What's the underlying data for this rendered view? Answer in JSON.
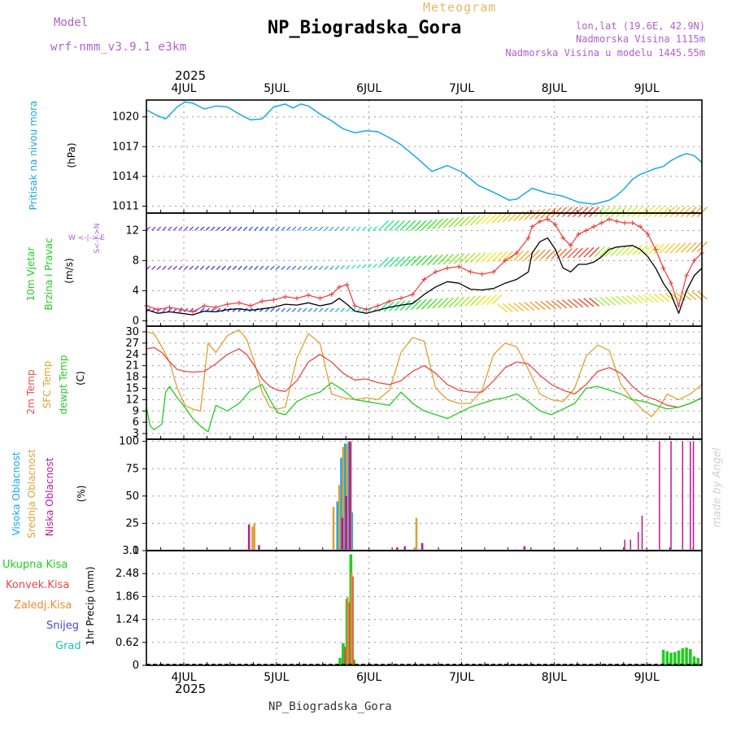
{
  "header": {
    "model_label": "Model",
    "model_value": "wrf-nmm_v3.9.1  e3km",
    "meteogram_label": "Meteogram",
    "station_title": "NP_Biogradska_Gora",
    "coords": "lon,lat (19.6E, 42.9N)",
    "altitude": "Nadmorska Visina 1115m",
    "model_altitude": "Nadmorska Visina u modelu 1445.55m",
    "footer_title": "NP_Biogradska_Gora",
    "credit": "made by Angel",
    "year_top": "2025",
    "year_bottom": "2025"
  },
  "panel_labels": {
    "pressure": {
      "title": "Pritisak na nivou mora",
      "unit": "(hPa)"
    },
    "wind": {
      "title1": "10m Vjetar",
      "title2": "Brzina i Pravac",
      "unit": "(m/s)",
      "compass": "W  <-|->  E",
      "compass_ns": "S<-|->N"
    },
    "temp": {
      "l1": "2m Temp",
      "l2": "SFC Temp",
      "l3": "dewpt Temp",
      "unit": "(C)"
    },
    "cloud": {
      "l1": "Visoka Oblacnost",
      "l2": "Srednja Oblacnost",
      "l3": "Niska Oblacnost",
      "unit": "(%)"
    },
    "precip": {
      "unit": "1hr Precip (mm)",
      "legend": [
        "Ukupna Kisa",
        "Konvek.Kisa",
        "Zaledj.Kisa",
        "Snijeg",
        "Grad"
      ]
    }
  },
  "colors": {
    "pressure": "#1aa7e6",
    "wind_speed": "#000000",
    "wind_gust": "#ee3a3a",
    "t2m": "#e84848",
    "tsfc": "#e0a030",
    "dewpt": "#22cc22",
    "cloud_high": "#1aa7e6",
    "cloud_mid": "#d9a43a",
    "cloud_low": "#c01890",
    "precip_total": "#22cc22",
    "precip_conv": "#e84848",
    "precip_frz": "#f08a30",
    "precip_snow": "#4848e0",
    "precip_hail": "#22c0b0",
    "model_text": "#b060d0",
    "meteogram_text": "#e8b860",
    "info_text": "#b060d0",
    "title_text": "#000000"
  },
  "chart_data": [
    {
      "id": "pressure",
      "type": "line",
      "ylabel": "(hPa)",
      "xlim": [
        0,
        144
      ],
      "ylim": [
        1010.3,
        1021.7
      ],
      "yticks": [
        1011,
        1014,
        1017,
        1020
      ],
      "days": [
        "4JUL",
        "5JUL",
        "6JUL",
        "7JUL",
        "8JUL",
        "9JUL"
      ],
      "series": [
        {
          "name": "Pritisak na nivou mora",
          "x": [
            0,
            3,
            5,
            8,
            10,
            12,
            15,
            18,
            21,
            24,
            27,
            30,
            33,
            36,
            38,
            40,
            42,
            45,
            48,
            51,
            54,
            57,
            60,
            63,
            66,
            70,
            74,
            78,
            82,
            86,
            90,
            94,
            96,
            100,
            104,
            108,
            112,
            116,
            118,
            120,
            122,
            124,
            126,
            128,
            130,
            132,
            134,
            136,
            138,
            140,
            142,
            144
          ],
          "y": [
            1020.7,
            1020.1,
            1019.8,
            1021.0,
            1021.5,
            1021.4,
            1020.8,
            1021.1,
            1021.0,
            1020.3,
            1019.7,
            1019.8,
            1021.0,
            1021.3,
            1020.9,
            1021.3,
            1021.1,
            1020.3,
            1019.6,
            1018.8,
            1018.4,
            1018.6,
            1018.5,
            1017.9,
            1017.2,
            1015.9,
            1014.5,
            1015.1,
            1014.4,
            1013.1,
            1012.4,
            1011.6,
            1011.7,
            1012.8,
            1012.3,
            1012.0,
            1011.4,
            1011.2,
            1011.4,
            1011.6,
            1012.1,
            1012.8,
            1013.7,
            1014.2,
            1014.5,
            1014.8,
            1015.0,
            1015.6,
            1016.0,
            1016.3,
            1016.1,
            1015.4
          ]
        }
      ]
    },
    {
      "id": "wind",
      "type": "line",
      "ylabel": "(m/s)",
      "xlim": [
        0,
        144
      ],
      "ylim": [
        -0.7,
        14.3
      ],
      "yticks": [
        0,
        4,
        8,
        12
      ],
      "series": [
        {
          "name": "speed",
          "x": [
            0,
            3,
            6,
            9,
            12,
            15,
            18,
            21,
            24,
            27,
            30,
            33,
            36,
            39,
            42,
            45,
            48,
            50,
            52,
            54,
            57,
            60,
            63,
            66,
            69,
            72,
            75,
            78,
            81,
            84,
            87,
            90,
            93,
            96,
            99,
            100,
            102,
            104,
            106,
            108,
            110,
            112,
            114,
            116,
            118,
            120,
            122,
            124,
            126,
            128,
            130,
            132,
            134,
            136,
            138,
            140,
            142,
            144
          ],
          "y": [
            1.5,
            1.0,
            1.2,
            1.0,
            0.8,
            1.3,
            1.2,
            1.5,
            1.6,
            1.4,
            1.6,
            1.8,
            2.2,
            2.1,
            2.4,
            2.0,
            2.3,
            3.0,
            2.2,
            1.3,
            1.0,
            1.4,
            1.8,
            2.1,
            2.3,
            3.5,
            4.5,
            5.2,
            5.0,
            4.2,
            4.1,
            4.3,
            5.0,
            5.5,
            6.5,
            9.0,
            10.5,
            11.0,
            9.5,
            7.0,
            6.5,
            7.5,
            7.5,
            7.8,
            8.5,
            9.5,
            9.8,
            9.9,
            10.0,
            9.5,
            8.5,
            7.0,
            5.0,
            3.5,
            1.0,
            4.0,
            6.0,
            7.0
          ]
        },
        {
          "name": "gust",
          "x": [
            0,
            3,
            6,
            9,
            12,
            15,
            18,
            21,
            24,
            27,
            30,
            33,
            36,
            39,
            42,
            45,
            48,
            50,
            52,
            54,
            57,
            60,
            63,
            66,
            69,
            72,
            75,
            78,
            81,
            84,
            87,
            90,
            93,
            96,
            99,
            100,
            102,
            104,
            106,
            108,
            110,
            112,
            114,
            116,
            118,
            120,
            122,
            124,
            126,
            128,
            130,
            132,
            134,
            136,
            138,
            140,
            142,
            144
          ],
          "y": [
            2.0,
            1.5,
            1.8,
            1.5,
            1.2,
            2.0,
            1.8,
            2.2,
            2.4,
            2.0,
            2.6,
            2.8,
            3.2,
            3.0,
            3.4,
            3.0,
            3.5,
            4.5,
            4.8,
            2.0,
            1.5,
            2.0,
            2.6,
            3.0,
            3.5,
            5.5,
            6.5,
            7.0,
            7.2,
            6.5,
            6.2,
            6.5,
            8.0,
            9.0,
            11.0,
            12.5,
            13.2,
            13.5,
            12.8,
            11.0,
            10.0,
            11.5,
            12.0,
            12.5,
            13.0,
            13.5,
            13.2,
            13.0,
            13.0,
            12.5,
            11.5,
            9.5,
            7.0,
            5.0,
            2.0,
            6.0,
            8.0,
            9.0
          ]
        }
      ]
    },
    {
      "id": "temp",
      "type": "line",
      "ylabel": "(C)",
      "xlim": [
        0,
        144
      ],
      "ylim": [
        1.5,
        31.5
      ],
      "yticks": [
        3,
        6,
        9,
        12,
        15,
        18,
        21,
        24,
        27,
        30
      ],
      "series": [
        {
          "name": "2m Temp",
          "x": [
            0,
            2,
            4,
            6,
            8,
            10,
            12,
            15,
            18,
            21,
            24,
            26,
            28,
            30,
            32,
            34,
            36,
            39,
            42,
            45,
            48,
            51,
            54,
            57,
            60,
            63,
            66,
            69,
            72,
            75,
            78,
            81,
            84,
            87,
            90,
            93,
            96,
            99,
            102,
            105,
            108,
            111,
            114,
            117,
            120,
            123,
            126,
            129,
            132,
            135,
            138,
            141,
            144
          ],
          "y": [
            25.5,
            25.8,
            24.5,
            22.0,
            20.0,
            19.5,
            19.3,
            19.5,
            21.5,
            24.0,
            25.5,
            24.0,
            21.0,
            17.5,
            15.5,
            14.5,
            14.2,
            17.0,
            22.0,
            24.0,
            22.0,
            19.0,
            17.2,
            17.5,
            16.5,
            16.0,
            17.0,
            19.5,
            21.0,
            19.0,
            16.0,
            14.5,
            14.0,
            14.0,
            17.0,
            20.5,
            22.0,
            21.5,
            18.5,
            16.0,
            14.5,
            13.5,
            16.0,
            19.5,
            20.5,
            19.0,
            15.5,
            13.0,
            12.0,
            10.5,
            10.0,
            11.0,
            12.5
          ]
        },
        {
          "name": "SFC Temp",
          "x": [
            0,
            2,
            4,
            6,
            8,
            10,
            12,
            14,
            16,
            18,
            21,
            24,
            26,
            28,
            30,
            32,
            34,
            36,
            39,
            42,
            45,
            48,
            51,
            54,
            57,
            60,
            63,
            66,
            69,
            72,
            75,
            78,
            81,
            84,
            87,
            90,
            93,
            96,
            99,
            102,
            105,
            108,
            111,
            114,
            117,
            120,
            123,
            126,
            129,
            131,
            133,
            135,
            138,
            141,
            144
          ],
          "y": [
            30.0,
            29.5,
            26.0,
            22.0,
            15.0,
            10.5,
            9.5,
            9.0,
            27.0,
            24.5,
            29.0,
            30.5,
            28.0,
            22.0,
            14.0,
            10.0,
            9.5,
            10.0,
            23.0,
            29.5,
            27.0,
            13.5,
            12.5,
            12.0,
            12.5,
            12.0,
            14.5,
            24.5,
            28.5,
            27.5,
            15.0,
            12.0,
            11.0,
            11.0,
            14.5,
            24.0,
            27.0,
            26.0,
            20.0,
            13.5,
            12.0,
            11.5,
            15.0,
            23.5,
            26.5,
            25.0,
            16.0,
            12.0,
            9.0,
            7.5,
            10.0,
            13.5,
            12.0,
            13.5,
            16.0
          ]
        },
        {
          "name": "dewpt Temp",
          "x": [
            0,
            1,
            2,
            4,
            5,
            6,
            8,
            10,
            12,
            14,
            16,
            18,
            21,
            24,
            27,
            30,
            32,
            34,
            36,
            39,
            42,
            45,
            48,
            51,
            54,
            57,
            60,
            63,
            66,
            69,
            72,
            75,
            78,
            81,
            84,
            87,
            90,
            93,
            96,
            99,
            102,
            105,
            108,
            111,
            114,
            117,
            120,
            123,
            126,
            129,
            132,
            135,
            138,
            141,
            144
          ],
          "y": [
            10.0,
            5.0,
            4.0,
            5.5,
            14.0,
            15.5,
            12.5,
            10.0,
            7.0,
            5.0,
            3.5,
            10.5,
            9.0,
            11.0,
            14.5,
            16.0,
            12.0,
            8.5,
            8.0,
            11.5,
            13.0,
            14.0,
            16.5,
            14.5,
            12.0,
            11.5,
            11.0,
            10.5,
            14.0,
            11.0,
            9.0,
            8.0,
            7.0,
            8.5,
            10.0,
            11.0,
            12.0,
            12.5,
            13.5,
            11.5,
            9.0,
            8.0,
            9.5,
            11.0,
            15.0,
            15.5,
            14.5,
            13.5,
            12.0,
            11.5,
            10.5,
            9.5,
            10.0,
            11.0,
            12.5
          ]
        }
      ]
    },
    {
      "id": "cloud",
      "type": "bar",
      "ylabel": "(%)",
      "xlim": [
        0,
        144
      ],
      "ylim": [
        0,
        102
      ],
      "yticks": [
        0,
        25,
        50,
        75,
        100
      ],
      "series": [
        {
          "name": "Visoka Oblacnost",
          "bars": [
            [
              27.0,
              0.5
            ],
            [
              48.0,
              0.5
            ],
            [
              49.0,
              0.5
            ],
            [
              49.5,
              45
            ],
            [
              50.5,
              85
            ],
            [
              51.5,
              98
            ],
            [
              52.5,
              100
            ],
            [
              53.3,
              35
            ],
            [
              71.0,
              1
            ],
            [
              72.0,
              1
            ],
            [
              85.5,
              0.5
            ]
          ]
        },
        {
          "name": "Srednja Oblacnost",
          "bars": [
            [
              27.5,
              22
            ],
            [
              28.0,
              25
            ],
            [
              48.5,
              40
            ],
            [
              50.0,
              60
            ],
            [
              51.0,
              95
            ],
            [
              52.0,
              98
            ],
            [
              53.0,
              99
            ],
            [
              66.0,
              1
            ],
            [
              69.5,
              3
            ],
            [
              70.0,
              30
            ]
          ]
        },
        {
          "name": "Niska Oblacnost",
          "bars": [
            [
              25.8,
              1
            ],
            [
              26.6,
              24
            ],
            [
              29.2,
              5
            ],
            [
              50.8,
              30
            ],
            [
              51.8,
              50
            ],
            [
              52.8,
              100
            ],
            [
              56.0,
              1
            ],
            [
              65.0,
              3
            ],
            [
              67.0,
              4
            ],
            [
              71.5,
              7
            ],
            [
              96.0,
              1
            ],
            [
              98.0,
              4
            ],
            [
              124.0,
              10
            ],
            [
              125.5,
              10
            ],
            [
              127.5,
              17
            ],
            [
              128.5,
              32
            ],
            [
              133.0,
              100
            ],
            [
              136.0,
              100
            ],
            [
              139.0,
              100
            ],
            [
              141.0,
              100
            ],
            [
              141.8,
              100
            ]
          ]
        }
      ]
    },
    {
      "id": "precip",
      "type": "bar",
      "ylabel": "1hr Precip (mm)",
      "xlim": [
        0,
        144
      ],
      "ylim": [
        0,
        3.1
      ],
      "yticks": [
        0,
        0.62,
        1.24,
        1.86,
        2.48,
        3.1
      ],
      "series": [
        {
          "name": "Ukupna Kisa",
          "bars": [
            [
              50.2,
              0.2
            ],
            [
              51.0,
              0.6
            ],
            [
              52.0,
              1.8
            ],
            [
              53.0,
              3.0
            ],
            [
              53.8,
              0.15
            ],
            [
              134.0,
              0.42
            ],
            [
              135.0,
              0.38
            ],
            [
              136.0,
              0.34
            ],
            [
              137.0,
              0.36
            ],
            [
              138.0,
              0.4
            ],
            [
              139.0,
              0.46
            ],
            [
              140.0,
              0.48
            ],
            [
              141.0,
              0.44
            ],
            [
              142.0,
              0.24
            ],
            [
              143.0,
              0.2
            ]
          ]
        },
        {
          "name": "Konvek.Kisa",
          "bars": [
            [
              51.5,
              0.5
            ],
            [
              52.5,
              1.7
            ],
            [
              53.5,
              2.4
            ]
          ]
        },
        {
          "name": "Zaledj.Kisa",
          "bars": [
            [
              52.2,
              1.85
            ],
            [
              53.2,
              2.5
            ]
          ]
        }
      ]
    }
  ]
}
